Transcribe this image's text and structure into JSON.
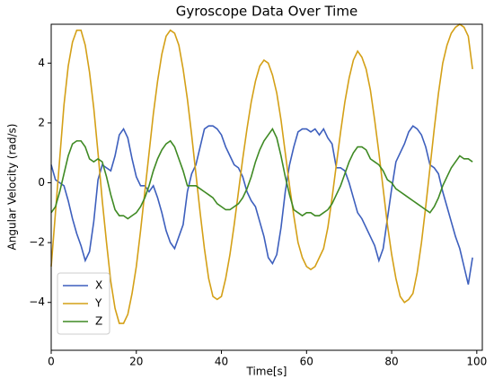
{
  "chart_data": {
    "type": "line",
    "title": "Gyroscope Data Over Time",
    "x_label": "Time[s]",
    "y_label": "Angular Velocity (rad/s)",
    "x": [
      0,
      1,
      2,
      3,
      4,
      5,
      6,
      7,
      8,
      9,
      10,
      11,
      12,
      13,
      14,
      15,
      16,
      17,
      18,
      19,
      20,
      21,
      22,
      23,
      24,
      25,
      26,
      27,
      28,
      29,
      30,
      31,
      32,
      33,
      34,
      35,
      36,
      37,
      38,
      39,
      40,
      41,
      42,
      43,
      44,
      45,
      46,
      47,
      48,
      49,
      50,
      51,
      52,
      53,
      54,
      55,
      56,
      57,
      58,
      59,
      60,
      61,
      62,
      63,
      64,
      65,
      66,
      67,
      68,
      69,
      70,
      71,
      72,
      73,
      74,
      75,
      76,
      77,
      78,
      79,
      80,
      81,
      82,
      83,
      84,
      85,
      86,
      87,
      88,
      89,
      90,
      91,
      92,
      93,
      94,
      95,
      96,
      97,
      98,
      99
    ],
    "series": [
      {
        "name": "X",
        "color": "#3d5fbd",
        "values": [
          0.6,
          0.1,
          0.0,
          -0.1,
          -0.6,
          -1.2,
          -1.7,
          -2.1,
          -2.6,
          -2.3,
          -1.3,
          0.1,
          0.6,
          0.5,
          0.4,
          0.9,
          1.6,
          1.8,
          1.5,
          0.8,
          0.2,
          -0.1,
          -0.1,
          -0.3,
          -0.1,
          -0.5,
          -1.0,
          -1.6,
          -2.0,
          -2.2,
          -1.8,
          -1.4,
          -0.3,
          0.3,
          0.6,
          1.2,
          1.8,
          1.9,
          1.9,
          1.8,
          1.6,
          1.2,
          0.9,
          0.6,
          0.5,
          0.2,
          -0.3,
          -0.6,
          -0.8,
          -1.3,
          -1.8,
          -2.5,
          -2.7,
          -2.4,
          -1.5,
          -0.3,
          0.6,
          1.2,
          1.7,
          1.8,
          1.8,
          1.7,
          1.8,
          1.6,
          1.8,
          1.5,
          1.3,
          0.5,
          0.5,
          0.4,
          0.0,
          -0.5,
          -1.0,
          -1.2,
          -1.5,
          -1.8,
          -2.1,
          -2.6,
          -2.2,
          -1.2,
          -0.2,
          0.7,
          1.0,
          1.3,
          1.7,
          1.9,
          1.8,
          1.6,
          1.2,
          0.6,
          0.5,
          0.3,
          -0.3,
          -0.8,
          -1.3,
          -1.8,
          -2.2,
          -2.8,
          -3.4,
          -2.5
        ]
      },
      {
        "name": "Y",
        "color": "#d4a017",
        "values": [
          -2.8,
          -1.0,
          0.8,
          2.6,
          3.9,
          4.7,
          5.1,
          5.1,
          4.6,
          3.7,
          2.5,
          1.0,
          -0.6,
          -2.0,
          -3.3,
          -4.2,
          -4.7,
          -4.7,
          -4.4,
          -3.7,
          -2.8,
          -1.6,
          -0.3,
          1.0,
          2.3,
          3.4,
          4.3,
          4.9,
          5.1,
          5.0,
          4.6,
          3.8,
          2.8,
          1.6,
          0.3,
          -1.0,
          -2.2,
          -3.2,
          -3.8,
          -3.9,
          -3.8,
          -3.2,
          -2.4,
          -1.4,
          -0.3,
          0.8,
          1.8,
          2.7,
          3.4,
          3.9,
          4.1,
          4.0,
          3.6,
          3.0,
          2.1,
          1.0,
          -0.1,
          -1.1,
          -2.0,
          -2.5,
          -2.8,
          -2.9,
          -2.8,
          -2.5,
          -2.2,
          -1.5,
          -0.5,
          0.6,
          1.7,
          2.7,
          3.5,
          4.1,
          4.4,
          4.2,
          3.8,
          3.1,
          2.1,
          1.0,
          -0.2,
          -1.4,
          -2.4,
          -3.2,
          -3.8,
          -4.0,
          -3.9,
          -3.7,
          -3.0,
          -2.0,
          -0.8,
          0.5,
          1.8,
          3.0,
          4.0,
          4.6,
          5.0,
          5.2,
          5.3,
          5.2,
          4.9,
          3.8
        ]
      },
      {
        "name": "Z",
        "color": "#3f8a24",
        "values": [
          -1.0,
          -0.8,
          -0.3,
          0.3,
          0.9,
          1.3,
          1.4,
          1.4,
          1.2,
          0.8,
          0.7,
          0.8,
          0.7,
          0.2,
          -0.4,
          -0.9,
          -1.1,
          -1.1,
          -1.2,
          -1.1,
          -1.0,
          -0.8,
          -0.5,
          -0.1,
          0.4,
          0.8,
          1.1,
          1.3,
          1.4,
          1.2,
          0.8,
          0.4,
          -0.1,
          -0.1,
          -0.1,
          -0.2,
          -0.3,
          -0.4,
          -0.5,
          -0.7,
          -0.8,
          -0.9,
          -0.9,
          -0.8,
          -0.7,
          -0.5,
          -0.2,
          0.2,
          0.7,
          1.1,
          1.4,
          1.6,
          1.8,
          1.5,
          0.9,
          0.2,
          -0.4,
          -0.9,
          -1.0,
          -1.1,
          -1.0,
          -1.0,
          -1.1,
          -1.1,
          -1.0,
          -0.9,
          -0.7,
          -0.4,
          -0.1,
          0.3,
          0.7,
          1.0,
          1.2,
          1.2,
          1.1,
          0.8,
          0.7,
          0.6,
          0.4,
          0.1,
          0.0,
          -0.2,
          -0.3,
          -0.4,
          -0.5,
          -0.6,
          -0.7,
          -0.8,
          -0.9,
          -1.0,
          -0.8,
          -0.5,
          -0.1,
          0.2,
          0.5,
          0.7,
          0.9,
          0.8,
          0.8,
          0.7
        ]
      }
    ],
    "xlim": [
      0,
      101.3
    ],
    "xticks": [
      0,
      20,
      40,
      60,
      80,
      100
    ],
    "ylim": [
      -5.6,
      5.3
    ],
    "yticks": [
      {
        "value": -4,
        "label": "−4"
      },
      {
        "value": -2,
        "label": "−2"
      },
      0,
      2,
      4
    ],
    "legend": "lower left",
    "grid": false
  }
}
